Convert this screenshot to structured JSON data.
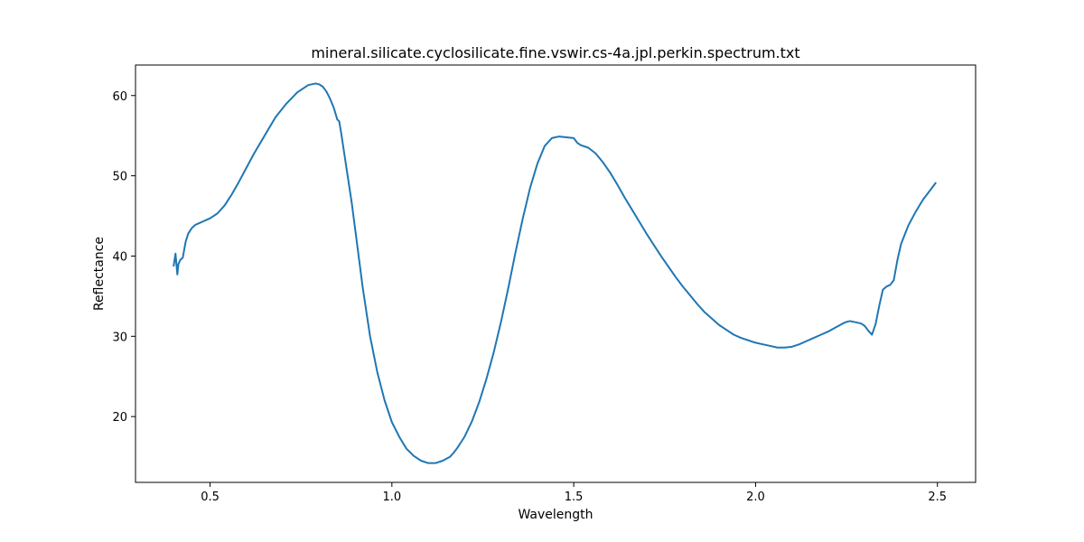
{
  "chart_data": {
    "type": "line",
    "title": "mineral.silicate.cyclosilicate.fine.vswir.cs-4a.jpl.perkin.spectrum.txt",
    "xlabel": "Wavelength",
    "ylabel": "Reflectance",
    "xlim": [
      0.295,
      2.605
    ],
    "ylim": [
      11.8,
      63.8
    ],
    "xticks": [
      0.5,
      1.0,
      1.5,
      2.0,
      2.5
    ],
    "xtick_labels": [
      "0.5",
      "1.0",
      "1.5",
      "2.0",
      "2.5"
    ],
    "yticks": [
      20,
      30,
      40,
      50,
      60
    ],
    "ytick_labels": [
      "20",
      "30",
      "40",
      "50",
      "60"
    ],
    "grid": false,
    "series": [
      {
        "color": "#1f77b4",
        "x": [
          0.4,
          0.405,
          0.41,
          0.413,
          0.418,
          0.425,
          0.433,
          0.44,
          0.45,
          0.46,
          0.47,
          0.48,
          0.49,
          0.5,
          0.52,
          0.54,
          0.56,
          0.58,
          0.6,
          0.62,
          0.65,
          0.68,
          0.71,
          0.74,
          0.77,
          0.79,
          0.8,
          0.81,
          0.82,
          0.83,
          0.84,
          0.85,
          0.855,
          0.86,
          0.87,
          0.88,
          0.89,
          0.9,
          0.91,
          0.92,
          0.94,
          0.96,
          0.98,
          1.0,
          1.02,
          1.04,
          1.06,
          1.08,
          1.1,
          1.12,
          1.14,
          1.16,
          1.17,
          1.18,
          1.2,
          1.22,
          1.24,
          1.26,
          1.28,
          1.3,
          1.32,
          1.34,
          1.36,
          1.38,
          1.4,
          1.42,
          1.44,
          1.46,
          1.48,
          1.5,
          1.51,
          1.52,
          1.54,
          1.56,
          1.58,
          1.6,
          1.62,
          1.64,
          1.66,
          1.68,
          1.7,
          1.72,
          1.74,
          1.76,
          1.78,
          1.8,
          1.82,
          1.84,
          1.86,
          1.88,
          1.9,
          1.92,
          1.94,
          1.96,
          1.98,
          2.0,
          2.02,
          2.04,
          2.06,
          2.08,
          2.1,
          2.12,
          2.14,
          2.16,
          2.18,
          2.2,
          2.22,
          2.24,
          2.25,
          2.26,
          2.27,
          2.28,
          2.29,
          2.3,
          2.31,
          2.32,
          2.33,
          2.34,
          2.35,
          2.36,
          2.37,
          2.38,
          2.39,
          2.4,
          2.42,
          2.44,
          2.46,
          2.48,
          2.495
        ],
        "y": [
          38.8,
          40.3,
          37.7,
          39.0,
          39.5,
          39.8,
          41.8,
          42.8,
          43.5,
          43.9,
          44.1,
          44.3,
          44.5,
          44.7,
          45.3,
          46.3,
          47.7,
          49.3,
          51.0,
          52.7,
          55.0,
          57.3,
          59.0,
          60.4,
          61.3,
          61.5,
          61.4,
          61.1,
          60.5,
          59.6,
          58.5,
          57.0,
          56.8,
          55.5,
          52.5,
          49.5,
          46.5,
          43.0,
          39.5,
          36.0,
          30.0,
          25.5,
          22.0,
          19.3,
          17.5,
          16.0,
          15.1,
          14.5,
          14.2,
          14.2,
          14.5,
          15.0,
          15.5,
          16.1,
          17.5,
          19.4,
          21.8,
          24.7,
          28.0,
          31.8,
          36.0,
          40.5,
          44.7,
          48.5,
          51.5,
          53.7,
          54.7,
          54.9,
          54.8,
          54.7,
          54.1,
          53.8,
          53.5,
          52.8,
          51.7,
          50.4,
          48.9,
          47.3,
          45.8,
          44.3,
          42.8,
          41.4,
          40.0,
          38.7,
          37.4,
          36.2,
          35.1,
          34.0,
          33.0,
          32.2,
          31.4,
          30.8,
          30.2,
          29.8,
          29.5,
          29.2,
          29.0,
          28.8,
          28.6,
          28.6,
          28.7,
          29.0,
          29.4,
          29.8,
          30.2,
          30.6,
          31.1,
          31.6,
          31.8,
          31.9,
          31.8,
          31.7,
          31.6,
          31.3,
          30.7,
          30.2,
          31.5,
          33.8,
          35.8,
          36.2,
          36.4,
          37.0,
          39.5,
          41.5,
          43.8,
          45.5,
          47.0,
          48.2,
          49.1
        ]
      }
    ]
  }
}
